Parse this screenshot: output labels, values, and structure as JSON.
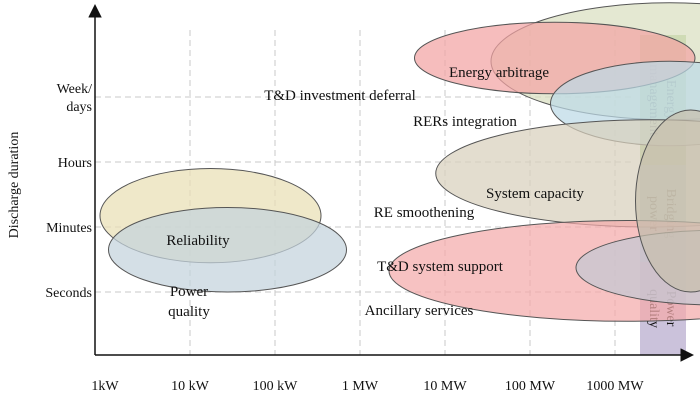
{
  "chart_data": {
    "type": "bubble-region",
    "ylabel": "Discharge duration",
    "xlabel": "",
    "x_ticks": [
      "1kW",
      "10 kW",
      "100 kW",
      "1 MW",
      "10 MW",
      "100 MW",
      "1000 MW"
    ],
    "x_scale": "log",
    "y_ticks": [
      {
        "lines": [
          "Week/",
          "days"
        ]
      },
      {
        "lines": [
          "Hours"
        ]
      },
      {
        "lines": [
          "Minutes"
        ]
      },
      {
        "lines": [
          "Seconds"
        ]
      }
    ],
    "grid": true,
    "applications": [
      {
        "name": "Energy arbitrage",
        "x_min_log": 4.6,
        "x_max_log": 8.8,
        "y_min": -0.35,
        "y_max": 1.45,
        "color": "#d9dfc0"
      },
      {
        "name": "T&D investment deferral",
        "x_min_log": 3.7,
        "x_max_log": 7.0,
        "y_min": 0.05,
        "y_max": 1.15,
        "color": "#f2a3a3"
      },
      {
        "name": "RERs integration",
        "x_min_log": 5.3,
        "x_max_log": 8.1,
        "y_min": -0.75,
        "y_max": 0.55,
        "color": "#bcd9e6"
      },
      {
        "name": "System capacity",
        "x_min_log": 3.95,
        "x_max_log": 9.0,
        "y_min": -2.0,
        "y_max": -0.35,
        "color": "#d8d0bd"
      },
      {
        "name": "Ancillary services",
        "x_min_log": 3.4,
        "x_max_log": 9.0,
        "y_min": -3.45,
        "y_max": -1.9,
        "color": "#f4aaaa"
      },
      {
        "name": "T&D system support",
        "x_min_log": 5.6,
        "x_max_log": 8.9,
        "y_min": -3.2,
        "y_max": -2.05,
        "color": "#c4c7d3"
      },
      {
        "name": "RE smoothening",
        "x_min_log": 6.3,
        "x_max_log": 7.6,
        "y_min": -3.0,
        "y_max": -0.2,
        "color": "#c8bfad"
      },
      {
        "name": "Reliability",
        "x_min_log": 0.0,
        "x_max_log": 2.6,
        "y_min": -2.55,
        "y_max": -1.1,
        "color": "#e9dfb4"
      },
      {
        "name": "Power quality",
        "x_min_log": 0.1,
        "x_max_log": 2.9,
        "y_min": -3.0,
        "y_max": -1.7,
        "color": "#c3d3dd"
      }
    ],
    "categories_bar": [
      {
        "label_lines": [
          "Energy",
          "management"
        ],
        "color": "#b3d196"
      },
      {
        "label_lines": [
          "Bridging",
          "power"
        ],
        "color": "#aad2e0"
      },
      {
        "label_lines": [
          "Power",
          "quality"
        ],
        "color": "#cbc2db"
      }
    ]
  }
}
